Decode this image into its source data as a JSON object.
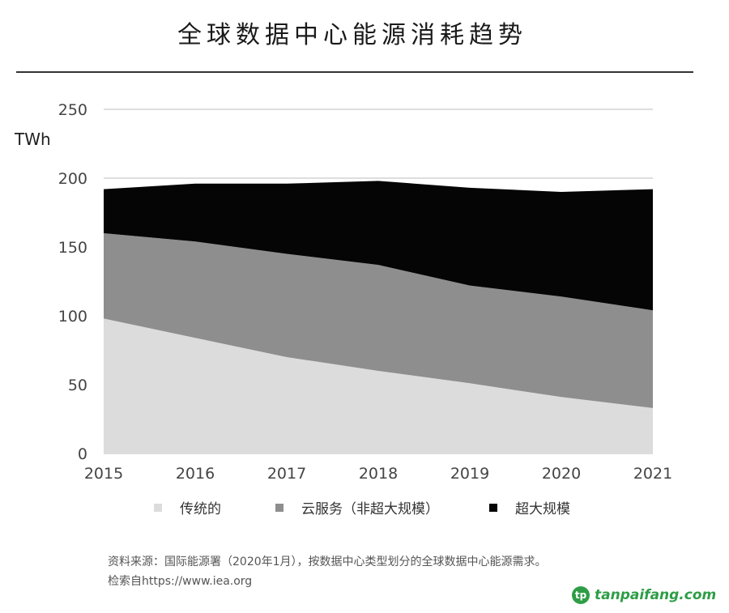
{
  "title": "全球数据中心能源消耗趋势",
  "unit": "TWh",
  "chart_data": {
    "type": "area",
    "stacked": true,
    "title": "全球数据中心能源消耗趋势",
    "ylabel": "TWh",
    "xlabel": "",
    "x": [
      2015,
      2016,
      2017,
      2018,
      2019,
      2020,
      2021
    ],
    "ylim": [
      0,
      250
    ],
    "yticks": [
      0,
      50,
      100,
      150,
      200,
      250
    ],
    "grid": true,
    "legend_position": "bottom",
    "series": [
      {
        "name": "传统的",
        "color": "#dcdcdc",
        "values": [
          98,
          84,
          70,
          60,
          51,
          41,
          33
        ]
      },
      {
        "name": "云服务（非超大规模）",
        "color": "#8e8e8e",
        "values": [
          62,
          70,
          75,
          77,
          71,
          73,
          71
        ]
      },
      {
        "name": "超大规模",
        "color": "#050505",
        "values": [
          32,
          42,
          51,
          61,
          71,
          76,
          88
        ]
      }
    ]
  },
  "legend": [
    {
      "label": "传统的",
      "color": "#dcdcdc"
    },
    {
      "label": "云服务（非超大规模）",
      "color": "#8e8e8e"
    },
    {
      "label": "超大规模",
      "color": "#050505"
    }
  ],
  "source_line1": "资料来源：国际能源署（2020年1月），按数据中心类型划分的全球数据中心能源需求。",
  "source_line2": "检索自https://www.iea.org",
  "watermark": "tanpaifang.com"
}
